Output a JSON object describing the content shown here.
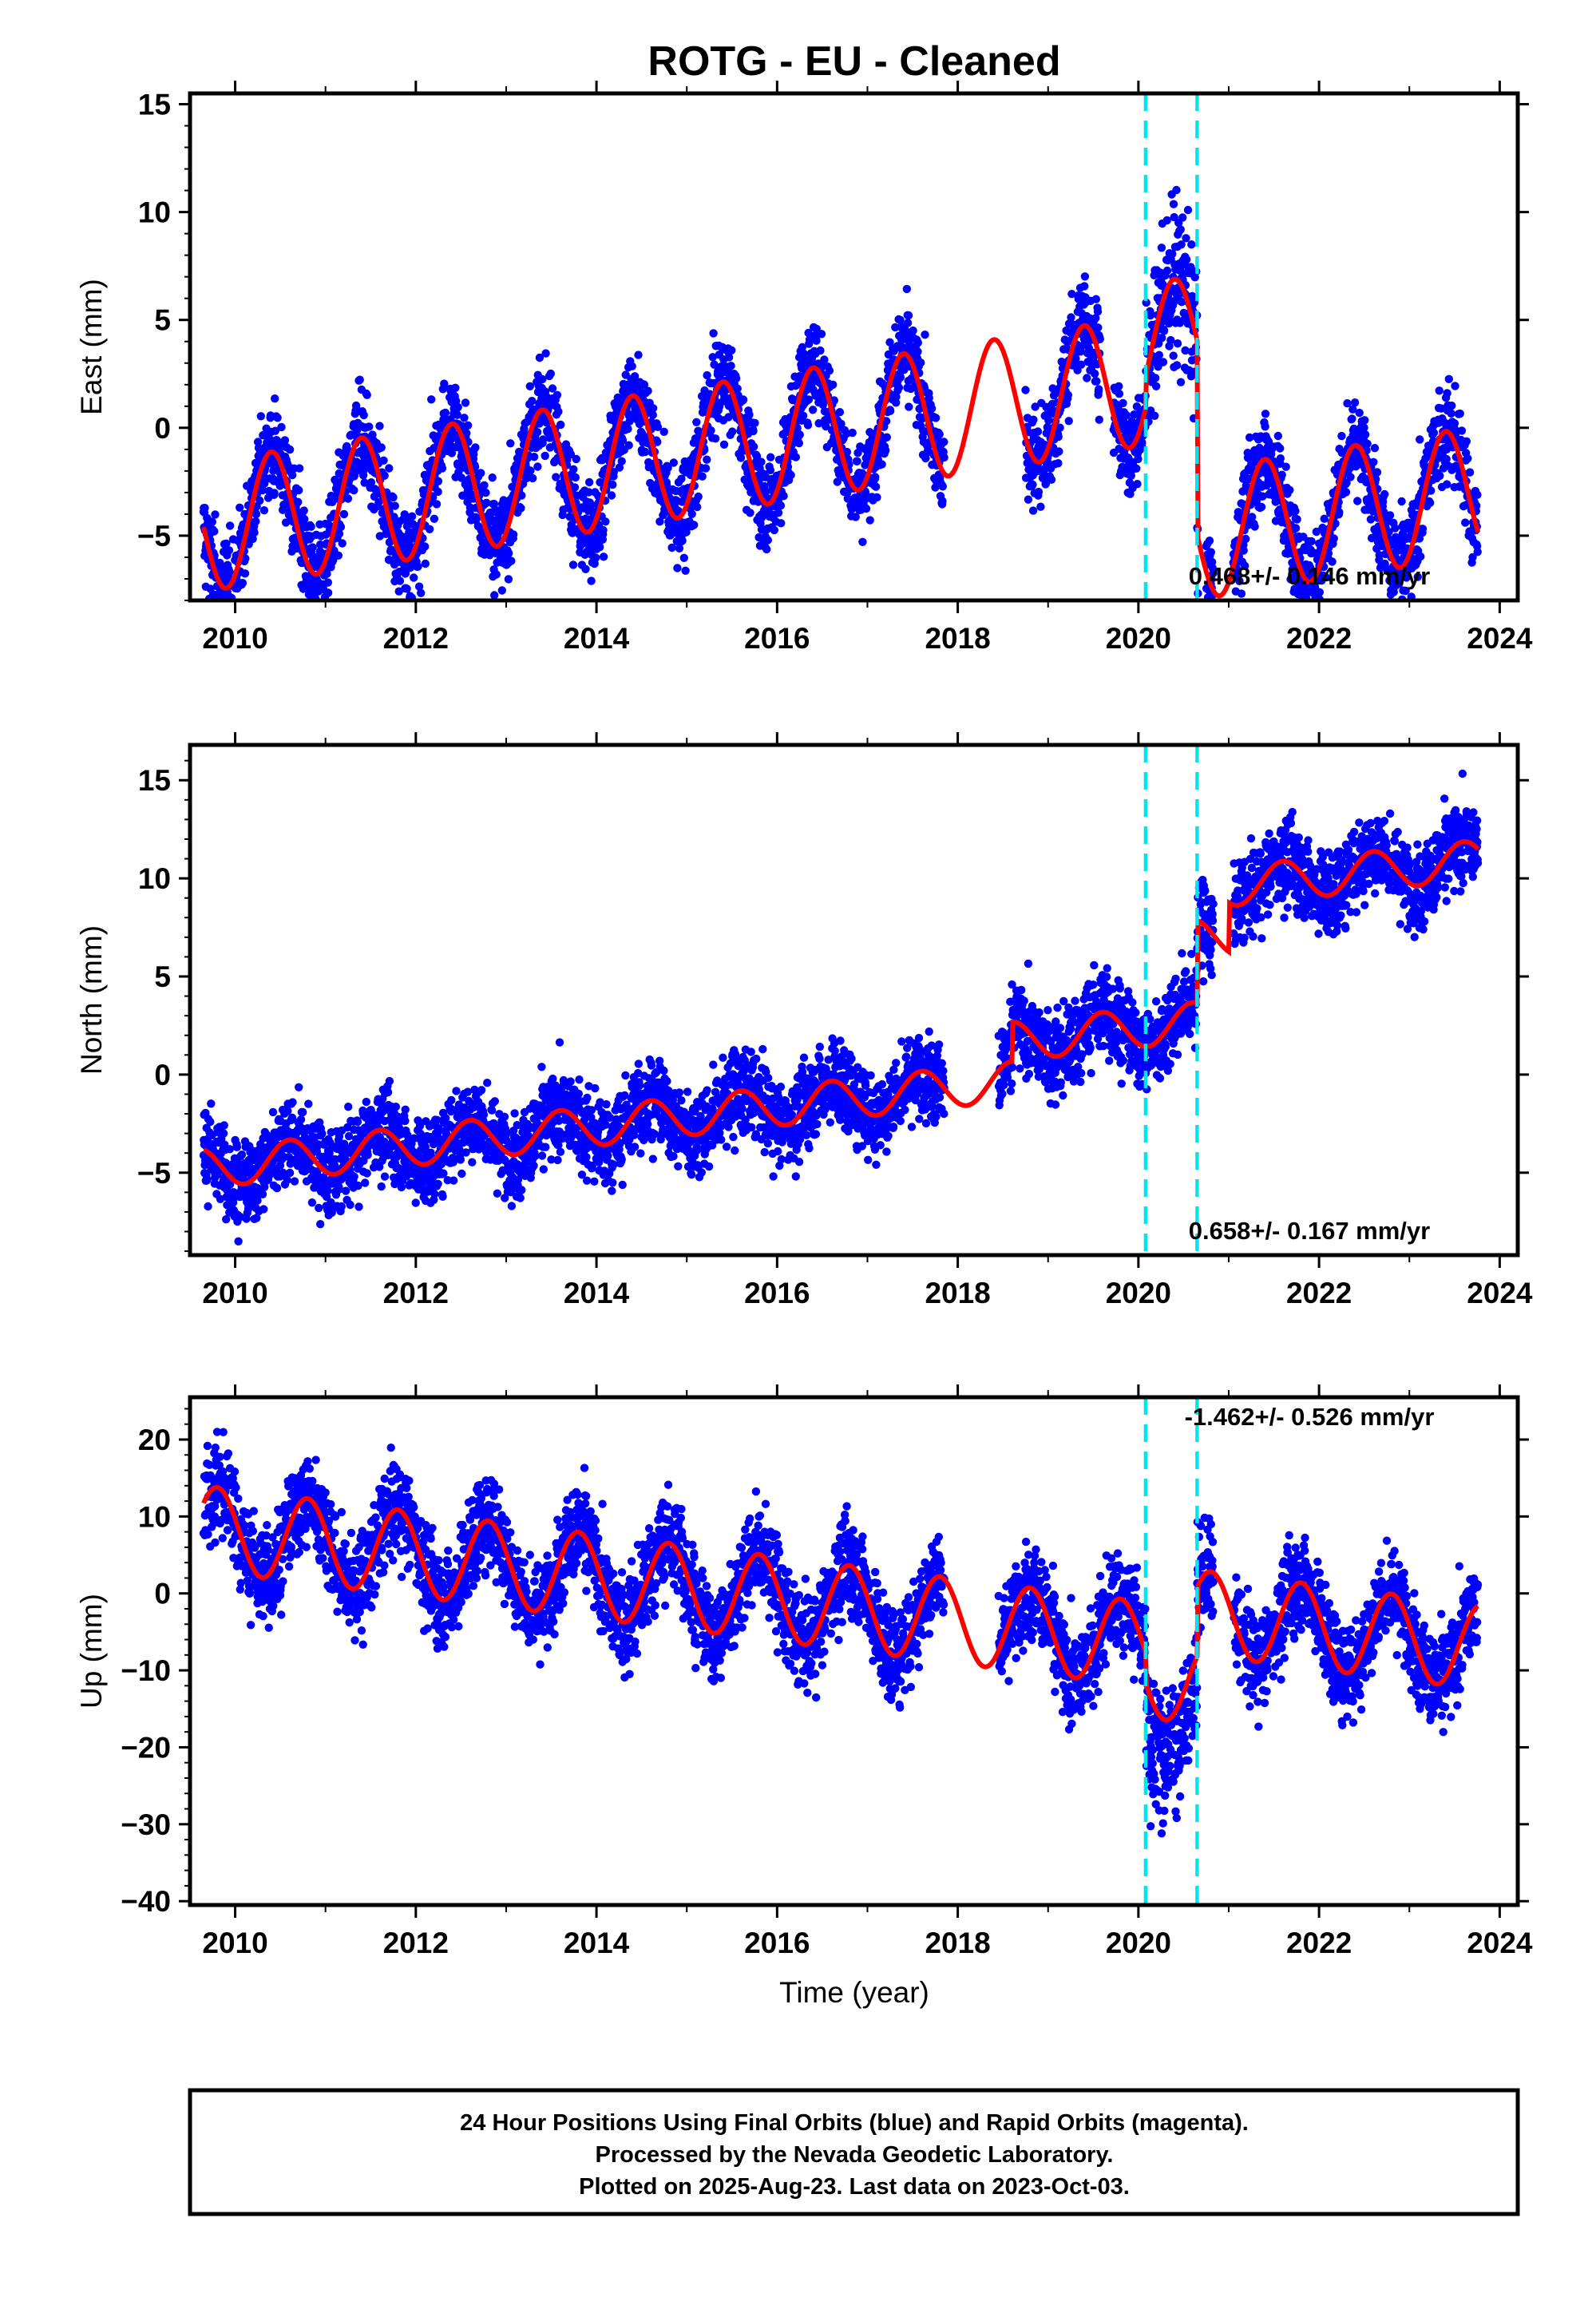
{
  "chart_data": {
    "type": "scatter",
    "title": "ROTG  - EU - Cleaned",
    "xlabel": "Time (year)",
    "xlim": [
      2009.5,
      2024.2
    ],
    "x_ticks": [
      "2010",
      "2012",
      "2014",
      "2016",
      "2018",
      "2020",
      "2022",
      "2024"
    ],
    "grid": false,
    "colors": {
      "daily_positions": "#0000ff",
      "model_fit": "#ff0000",
      "event_lines": "#00e5ee"
    },
    "event_lines": [
      2020.08,
      2020.65
    ],
    "panels": [
      {
        "ylabel": "East (mm)",
        "ylim": [
          -8,
          15.5
        ],
        "y_ticks": [
          -5,
          0,
          5,
          10,
          15
        ],
        "y_tick_labels": [
          "−5",
          "0",
          "5",
          "10",
          "15"
        ],
        "rate": "0.468+/- 0.146 mm/yr",
        "rate_position": "bottom-right",
        "model": {
          "offset": -4.6,
          "slope": 0.65,
          "amp": 3.0,
          "phase": 0.15,
          "t0": 2009.65,
          "t1": 2023.76,
          "steps": [
            {
              "t": 2020.08,
              "d": 1.5
            },
            {
              "t": 2020.65,
              "d": -9.0
            }
          ]
        },
        "scatter_spread": 1.1,
        "gaps": [
          [
            2017.85,
            2018.75
          ],
          [
            2019.58,
            2019.72
          ],
          [
            2020.66,
            2020.75
          ],
          [
            2020.83,
            2021.05
          ]
        ]
      },
      {
        "ylabel": "North (mm)",
        "ylim": [
          -9.2,
          16.8
        ],
        "y_ticks": [
          -5,
          0,
          5,
          10,
          15
        ],
        "y_tick_labels": [
          "−5",
          "0",
          "5",
          "10",
          "15"
        ],
        "rate": "0.658+/- 0.167 mm/yr",
        "rate_position": "bottom-right",
        "model": {
          "offset": -4.8,
          "slope": 0.5,
          "amp": 1.0,
          "phase": 0.35,
          "t0": 2009.65,
          "t1": 2023.76,
          "steps": [
            {
              "t": 2018.6,
              "d": 2.0
            },
            {
              "t": 2020.65,
              "d": 4.2
            },
            {
              "t": 2021.0,
              "d": 2.5
            }
          ]
        },
        "scatter_spread": 1.1,
        "gaps": [
          [
            2017.85,
            2018.45
          ],
          [
            2020.83,
            2021.05
          ]
        ]
      },
      {
        "ylabel": "Up (mm)",
        "ylim": [
          -40.5,
          25.5
        ],
        "y_ticks": [
          -40,
          -30,
          -20,
          -10,
          0,
          10,
          20
        ],
        "y_tick_labels": [
          "−40",
          "−30",
          "−20",
          "−10",
          "0",
          "10",
          "20"
        ],
        "rate": "-1.462+/- 0.526 mm/yr",
        "rate_position": "top-right",
        "model": {
          "offset": 8.5,
          "slope": -1.45,
          "amp": 5.5,
          "phase": 0.55,
          "t0": 2009.65,
          "t1": 2023.76,
          "steps": [
            {
              "t": 2020.08,
              "d": -4.0
            },
            {
              "t": 2020.65,
              "d": 9.0
            }
          ]
        },
        "scatter_spread": 3.2,
        "gaps": [
          [
            2017.85,
            2018.45
          ],
          [
            2020.83,
            2021.05
          ]
        ]
      }
    ]
  },
  "footer": {
    "line1": "24 Hour Positions Using Final Orbits (blue) and Rapid Orbits (magenta).",
    "line2": "Processed by the Nevada Geodetic Laboratory.",
    "line3": "Plotted on 2025-Aug-23. Last data on 2023-Oct-03."
  }
}
